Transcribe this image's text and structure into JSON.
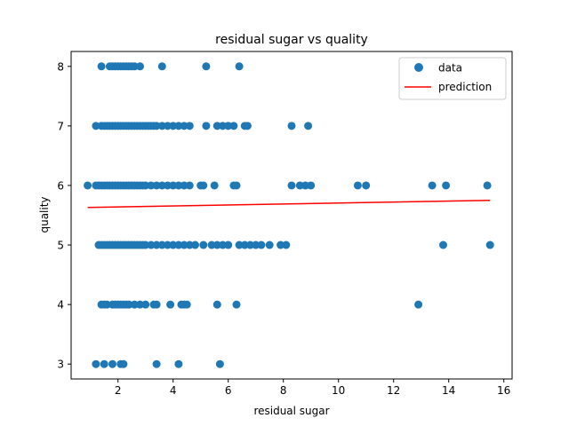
{
  "chart_data": {
    "type": "scatter",
    "title": "residual sugar vs quality",
    "xlabel": "residual sugar",
    "ylabel": "quality",
    "xlim": [
      0.3,
      16.3
    ],
    "ylim": [
      2.75,
      8.25
    ],
    "xticks": [
      2,
      4,
      6,
      8,
      10,
      12,
      14,
      16
    ],
    "yticks": [
      3,
      4,
      5,
      6,
      7,
      8
    ],
    "grid": false,
    "legend_position": "top-right",
    "colors": {
      "data": "#1f77b4",
      "prediction": "#ff0000"
    },
    "series": [
      {
        "name": "data",
        "kind": "scatter",
        "points": [
          [
            1.4,
            8
          ],
          [
            1.7,
            8
          ],
          [
            1.8,
            8
          ],
          [
            1.9,
            8
          ],
          [
            2.0,
            8
          ],
          [
            2.1,
            8
          ],
          [
            2.2,
            8
          ],
          [
            2.3,
            8
          ],
          [
            2.4,
            8
          ],
          [
            2.5,
            8
          ],
          [
            2.6,
            8
          ],
          [
            2.8,
            8
          ],
          [
            3.6,
            8
          ],
          [
            5.2,
            8
          ],
          [
            6.4,
            8
          ],
          [
            1.2,
            7
          ],
          [
            1.4,
            7
          ],
          [
            1.5,
            7
          ],
          [
            1.6,
            7
          ],
          [
            1.7,
            7
          ],
          [
            1.8,
            7
          ],
          [
            1.9,
            7
          ],
          [
            2.0,
            7
          ],
          [
            2.1,
            7
          ],
          [
            2.2,
            7
          ],
          [
            2.3,
            7
          ],
          [
            2.4,
            7
          ],
          [
            2.5,
            7
          ],
          [
            2.6,
            7
          ],
          [
            2.7,
            7
          ],
          [
            2.8,
            7
          ],
          [
            2.9,
            7
          ],
          [
            3.0,
            7
          ],
          [
            3.1,
            7
          ],
          [
            3.2,
            7
          ],
          [
            3.3,
            7
          ],
          [
            3.4,
            7
          ],
          [
            3.6,
            7
          ],
          [
            3.8,
            7
          ],
          [
            4.0,
            7
          ],
          [
            4.2,
            7
          ],
          [
            4.4,
            7
          ],
          [
            4.6,
            7
          ],
          [
            5.2,
            7
          ],
          [
            5.6,
            7
          ],
          [
            5.8,
            7
          ],
          [
            6.0,
            7
          ],
          [
            6.2,
            7
          ],
          [
            6.6,
            7
          ],
          [
            6.7,
            7
          ],
          [
            8.3,
            7
          ],
          [
            8.9,
            7
          ],
          [
            0.9,
            6
          ],
          [
            1.2,
            6
          ],
          [
            1.3,
            6
          ],
          [
            1.4,
            6
          ],
          [
            1.5,
            6
          ],
          [
            1.6,
            6
          ],
          [
            1.7,
            6
          ],
          [
            1.8,
            6
          ],
          [
            1.9,
            6
          ],
          [
            2.0,
            6
          ],
          [
            2.1,
            6
          ],
          [
            2.2,
            6
          ],
          [
            2.3,
            6
          ],
          [
            2.4,
            6
          ],
          [
            2.5,
            6
          ],
          [
            2.6,
            6
          ],
          [
            2.7,
            6
          ],
          [
            2.8,
            6
          ],
          [
            2.9,
            6
          ],
          [
            3.0,
            6
          ],
          [
            3.2,
            6
          ],
          [
            3.4,
            6
          ],
          [
            3.6,
            6
          ],
          [
            3.8,
            6
          ],
          [
            4.0,
            6
          ],
          [
            4.2,
            6
          ],
          [
            4.4,
            6
          ],
          [
            4.6,
            6
          ],
          [
            5.0,
            6
          ],
          [
            5.1,
            6
          ],
          [
            5.5,
            6
          ],
          [
            6.2,
            6
          ],
          [
            6.3,
            6
          ],
          [
            8.3,
            6
          ],
          [
            8.6,
            6
          ],
          [
            8.8,
            6
          ],
          [
            9.0,
            6
          ],
          [
            10.7,
            6
          ],
          [
            11.0,
            6
          ],
          [
            13.4,
            6
          ],
          [
            13.9,
            6
          ],
          [
            15.4,
            6
          ],
          [
            1.3,
            5
          ],
          [
            1.4,
            5
          ],
          [
            1.5,
            5
          ],
          [
            1.6,
            5
          ],
          [
            1.7,
            5
          ],
          [
            1.8,
            5
          ],
          [
            1.9,
            5
          ],
          [
            2.0,
            5
          ],
          [
            2.1,
            5
          ],
          [
            2.2,
            5
          ],
          [
            2.3,
            5
          ],
          [
            2.4,
            5
          ],
          [
            2.5,
            5
          ],
          [
            2.6,
            5
          ],
          [
            2.7,
            5
          ],
          [
            2.8,
            5
          ],
          [
            2.9,
            5
          ],
          [
            3.0,
            5
          ],
          [
            3.2,
            5
          ],
          [
            3.4,
            5
          ],
          [
            3.6,
            5
          ],
          [
            3.8,
            5
          ],
          [
            4.0,
            5
          ],
          [
            4.2,
            5
          ],
          [
            4.4,
            5
          ],
          [
            4.6,
            5
          ],
          [
            4.8,
            5
          ],
          [
            5.1,
            5
          ],
          [
            5.4,
            5
          ],
          [
            5.6,
            5
          ],
          [
            5.8,
            5
          ],
          [
            6.0,
            5
          ],
          [
            6.4,
            5
          ],
          [
            6.6,
            5
          ],
          [
            6.8,
            5
          ],
          [
            7.0,
            5
          ],
          [
            7.2,
            5
          ],
          [
            7.5,
            5
          ],
          [
            7.9,
            5
          ],
          [
            8.1,
            5
          ],
          [
            13.8,
            5
          ],
          [
            15.5,
            5
          ],
          [
            1.4,
            4
          ],
          [
            1.5,
            4
          ],
          [
            1.6,
            4
          ],
          [
            1.8,
            4
          ],
          [
            1.9,
            4
          ],
          [
            2.0,
            4
          ],
          [
            2.1,
            4
          ],
          [
            2.2,
            4
          ],
          [
            2.3,
            4
          ],
          [
            2.4,
            4
          ],
          [
            2.6,
            4
          ],
          [
            2.8,
            4
          ],
          [
            3.0,
            4
          ],
          [
            3.3,
            4
          ],
          [
            3.4,
            4
          ],
          [
            3.9,
            4
          ],
          [
            4.3,
            4
          ],
          [
            4.4,
            4
          ],
          [
            4.5,
            4
          ],
          [
            5.6,
            4
          ],
          [
            6.3,
            4
          ],
          [
            12.9,
            4
          ],
          [
            1.2,
            3
          ],
          [
            1.5,
            3
          ],
          [
            1.8,
            3
          ],
          [
            2.1,
            3
          ],
          [
            2.2,
            3
          ],
          [
            3.4,
            3
          ],
          [
            4.2,
            3
          ],
          [
            5.7,
            3
          ]
        ]
      },
      {
        "name": "prediction",
        "kind": "line",
        "points": [
          [
            0.9,
            5.63
          ],
          [
            15.5,
            5.75
          ]
        ]
      }
    ]
  }
}
